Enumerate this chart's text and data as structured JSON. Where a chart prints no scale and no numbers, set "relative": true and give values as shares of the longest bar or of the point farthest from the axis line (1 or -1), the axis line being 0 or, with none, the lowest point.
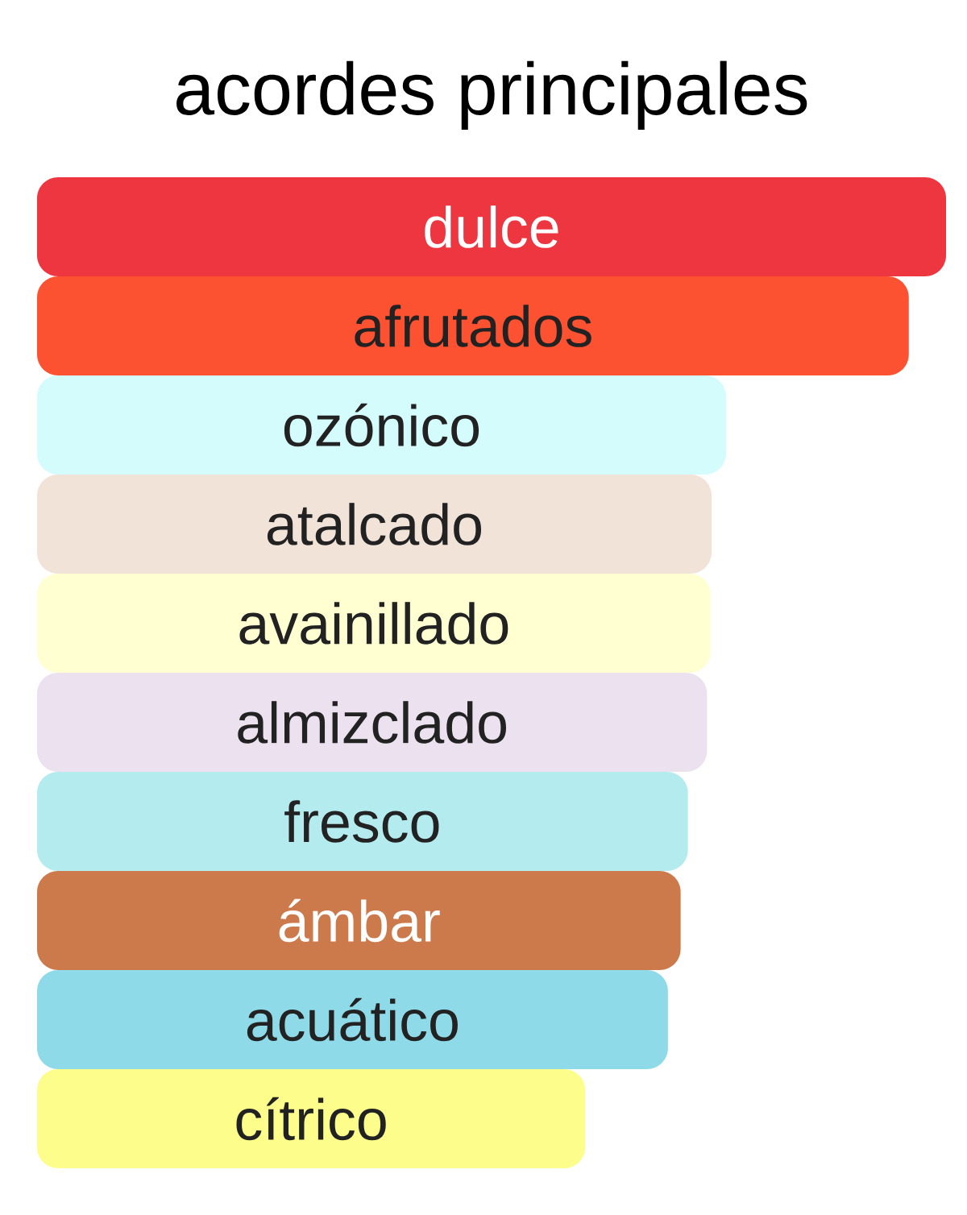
{
  "chart_data": {
    "type": "bar",
    "orientation": "horizontal",
    "relative": true,
    "title": "acordes principales",
    "categories": [
      "dulce",
      "afrutados",
      "ozónico",
      "atalcado",
      "avainillado",
      "almizclado",
      "fresco",
      "ámbar",
      "acuático",
      "cítrico"
    ],
    "values": [
      1,
      0.959,
      0.758,
      0.742,
      0.741,
      0.737,
      0.716,
      0.708,
      0.694,
      0.603
    ],
    "colors": [
      "#ee3640",
      "#fc5232",
      "#d5fcfc",
      "#f2e3d9",
      "#ffffd2",
      "#ebe1ef",
      "#b4ebef",
      "#cc7a4b",
      "#8edae8",
      "#fcfd8a"
    ]
  }
}
